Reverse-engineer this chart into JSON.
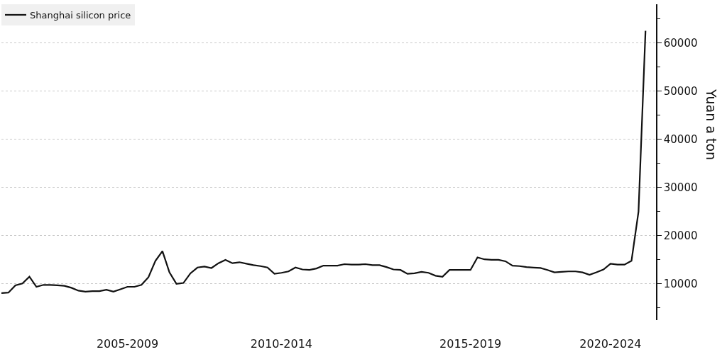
{
  "chart_data": {
    "type": "line",
    "ylabel": "Yuan a ton",
    "legend": "top left",
    "grid": "y",
    "marker": "none",
    "line_style": "solid",
    "categories": [
      null,
      null,
      null,
      null,
      null,
      null,
      null,
      null,
      null,
      null,
      null,
      null,
      null,
      null,
      null,
      null,
      null,
      null,
      "2005-2009",
      null,
      null,
      null,
      null,
      null,
      null,
      null,
      null,
      null,
      null,
      null,
      null,
      null,
      null,
      null,
      null,
      null,
      null,
      null,
      null,
      null,
      "2010-2014",
      null,
      null,
      null,
      null,
      null,
      null,
      null,
      null,
      null,
      null,
      null,
      null,
      null,
      null,
      null,
      null,
      null,
      null,
      null,
      null,
      null,
      null,
      null,
      null,
      null,
      null,
      "2015-2019",
      null,
      null,
      null,
      null,
      null,
      null,
      null,
      null,
      null,
      null,
      null,
      null,
      null,
      null,
      null,
      null,
      null,
      null,
      null,
      "2020-2024",
      null,
      null,
      null,
      null,
      null
    ],
    "ylim": [
      2500,
      68000
    ],
    "yticks": [
      10000,
      20000,
      30000,
      40000,
      50000,
      60000,
      {
        "value": 5000,
        "label": null
      },
      {
        "value": 15000,
        "label": null
      },
      {
        "value": 25000,
        "label": null
      },
      {
        "value": 35000,
        "label": null
      },
      {
        "value": 45000,
        "label": null
      },
      {
        "value": 55000,
        "label": null
      },
      {
        "value": 65000,
        "label": null
      }
    ],
    "series": [
      {
        "name": "Shanghai silicon price",
        "color": "#111111",
        "values": [
          8100,
          8200,
          9700,
          10100,
          11500,
          9400,
          9800,
          9800,
          9700,
          9600,
          9200,
          8600,
          8400,
          8500,
          8500,
          8800,
          8400,
          8900,
          9400,
          9400,
          9800,
          11400,
          14800,
          16800,
          12400,
          10000,
          10200,
          12200,
          13400,
          13600,
          13300,
          14300,
          15000,
          14300,
          14500,
          14200,
          13900,
          13700,
          13400,
          12100,
          12300,
          12600,
          13400,
          13000,
          12900,
          13200,
          13800,
          13800,
          13800,
          14100,
          14000,
          14000,
          14100,
          13900,
          13900,
          13500,
          13000,
          12900,
          12100,
          12200,
          12500,
          12300,
          11700,
          11500,
          12900,
          12900,
          12900,
          12900,
          15500,
          15100,
          15000,
          15000,
          14700,
          13800,
          13700,
          13500,
          13400,
          13300,
          12900,
          12400,
          12500,
          12600,
          12600,
          12400,
          11900,
          12400,
          13000,
          14200,
          14000,
          14000,
          14800,
          25000,
          62500
        ]
      }
    ]
  }
}
